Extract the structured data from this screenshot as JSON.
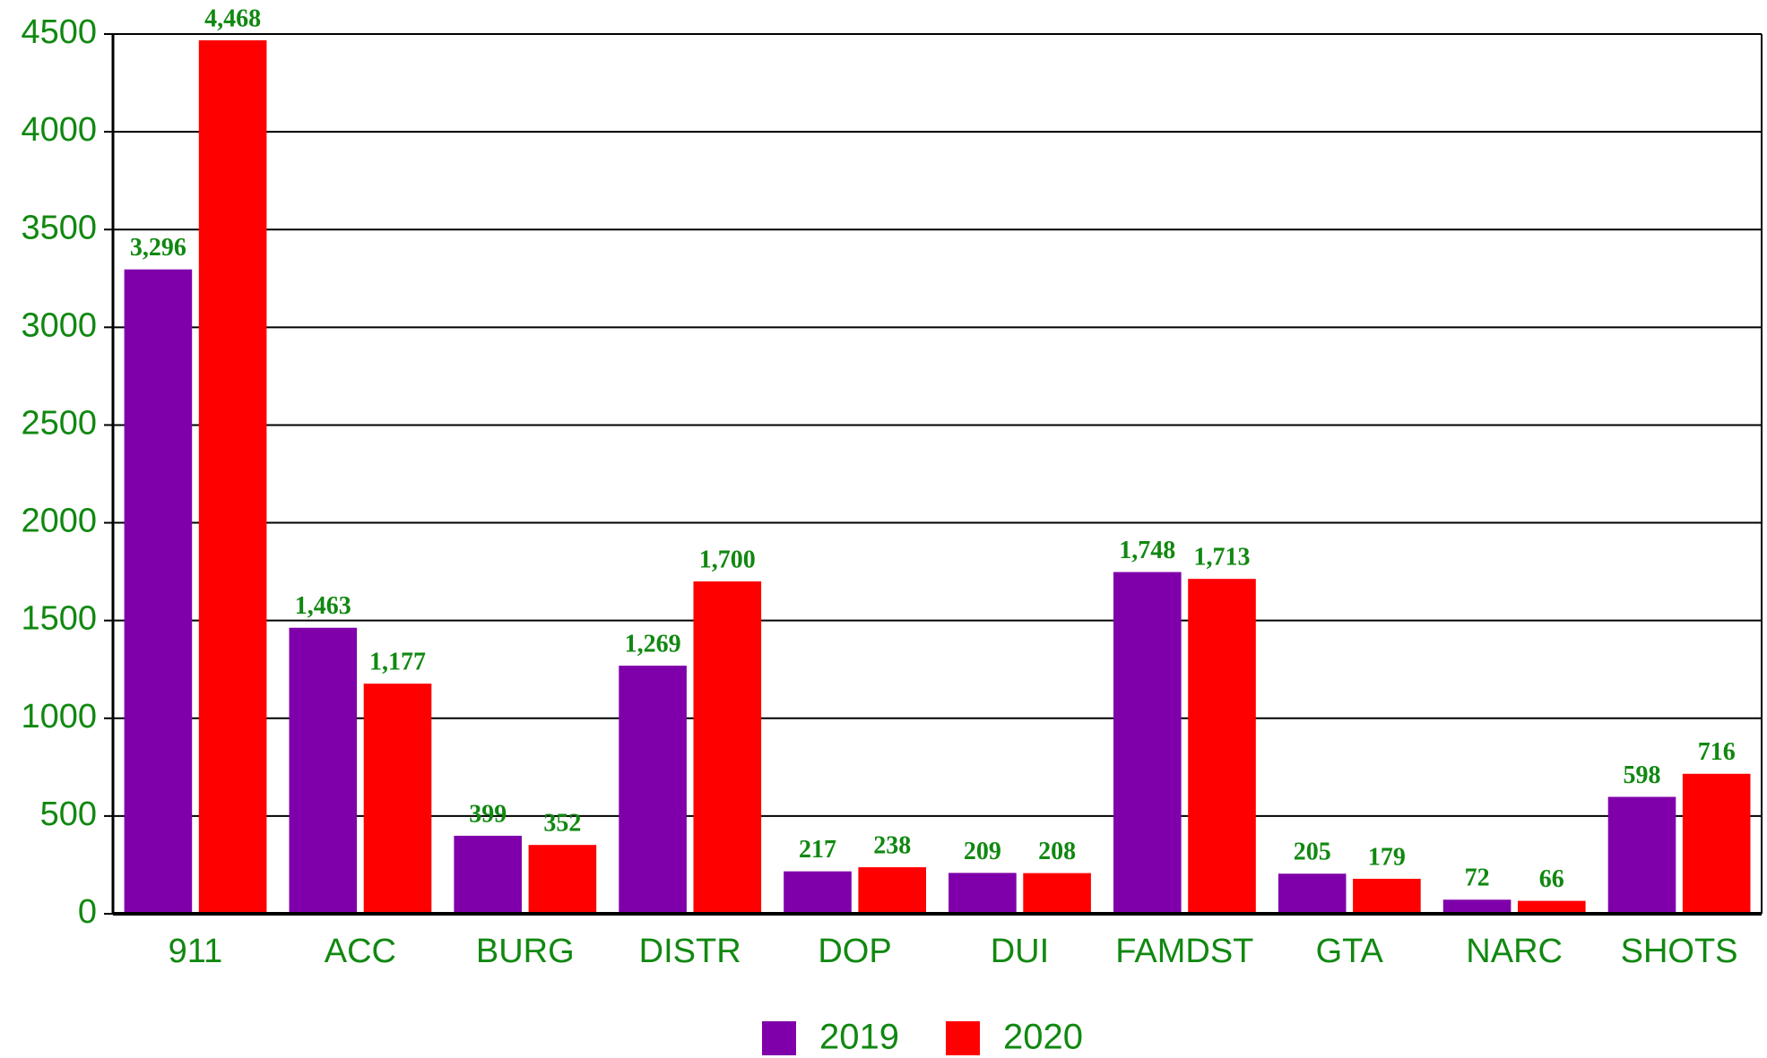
{
  "chart_data": {
    "type": "bar",
    "categories": [
      "911",
      "ACC",
      "BURG",
      "DISTR",
      "DOP",
      "DUI",
      "FAMDST",
      "GTA",
      "NARC",
      "SHOTS"
    ],
    "series": [
      {
        "name": "2019",
        "color": "#7f00aa",
        "values": [
          3296,
          1463,
          399,
          1269,
          217,
          209,
          1748,
          205,
          72,
          598
        ],
        "value_labels": [
          "3,296",
          "1,463",
          "399",
          "1,269",
          "217",
          "209",
          "1,748",
          "205",
          "72",
          "598"
        ]
      },
      {
        "name": "2020",
        "color": "#ff0000",
        "values": [
          4468,
          1177,
          352,
          1700,
          238,
          208,
          1713,
          179,
          66,
          716
        ],
        "value_labels": [
          "4,468",
          "1,177",
          "352",
          "1,700",
          "238",
          "208",
          "1,713",
          "179",
          "66",
          "716"
        ]
      }
    ],
    "ylim": [
      0,
      4500
    ],
    "yticks": [
      0,
      500,
      1000,
      1500,
      2000,
      2500,
      3000,
      3500,
      4000,
      4500
    ],
    "grid": true,
    "legend": "bottom"
  }
}
